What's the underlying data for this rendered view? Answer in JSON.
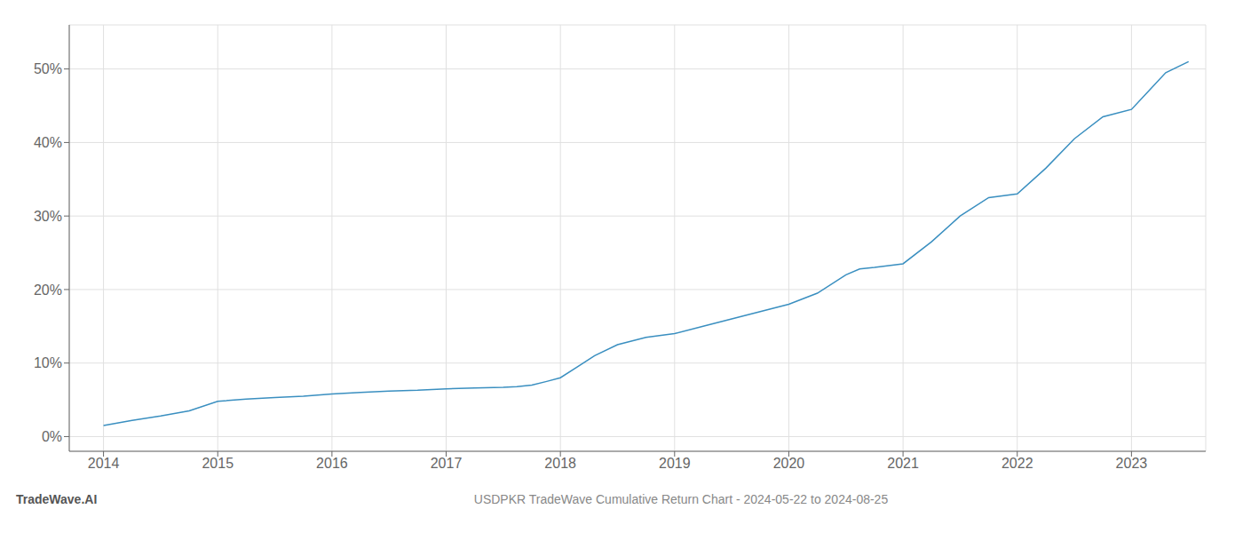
{
  "chart_data": {
    "type": "line",
    "title": "USDPKR TradeWave Cumulative Return Chart - 2024-05-22 to 2024-08-25",
    "annotations": [
      "TradeWave.AI"
    ],
    "x": [
      2014.0,
      2014.25,
      2014.5,
      2014.75,
      2015.0,
      2015.25,
      2015.5,
      2015.75,
      2016.0,
      2016.25,
      2016.5,
      2016.75,
      2017.0,
      2017.25,
      2017.5,
      2017.62,
      2017.75,
      2017.88,
      2018.0,
      2018.15,
      2018.3,
      2018.5,
      2018.75,
      2019.0,
      2019.25,
      2019.5,
      2019.75,
      2020.0,
      2020.25,
      2020.5,
      2020.62,
      2020.75,
      2021.0,
      2021.25,
      2021.5,
      2021.75,
      2022.0,
      2022.25,
      2022.5,
      2022.75,
      2023.0,
      2023.15,
      2023.3,
      2023.5
    ],
    "values": [
      1.5,
      2.2,
      2.8,
      3.5,
      4.8,
      5.1,
      5.3,
      5.5,
      5.8,
      6.0,
      6.2,
      6.3,
      6.5,
      6.6,
      6.7,
      6.8,
      7.0,
      7.5,
      8.0,
      9.5,
      11.0,
      12.5,
      13.5,
      14.0,
      15.0,
      16.0,
      17.0,
      18.0,
      19.5,
      22.0,
      22.8,
      23.0,
      23.5,
      26.5,
      30.0,
      32.5,
      33.0,
      36.5,
      40.5,
      43.5,
      44.5,
      47.0,
      49.5,
      51.0
    ],
    "color": "#3a8fc0",
    "xlim": [
      2013.7,
      2023.65
    ],
    "ylim": [
      -2,
      56
    ],
    "xticks": [
      2014,
      2015,
      2016,
      2017,
      2018,
      2019,
      2020,
      2021,
      2022,
      2023
    ],
    "yticks": [
      {
        "value": 0,
        "label": "0%"
      },
      {
        "value": 10,
        "label": "10%"
      },
      {
        "value": 20,
        "label": "20%"
      },
      {
        "value": 30,
        "label": "30%"
      },
      {
        "value": 40,
        "label": "40%"
      },
      {
        "value": 50,
        "label": "50%"
      }
    ],
    "grid": true
  }
}
